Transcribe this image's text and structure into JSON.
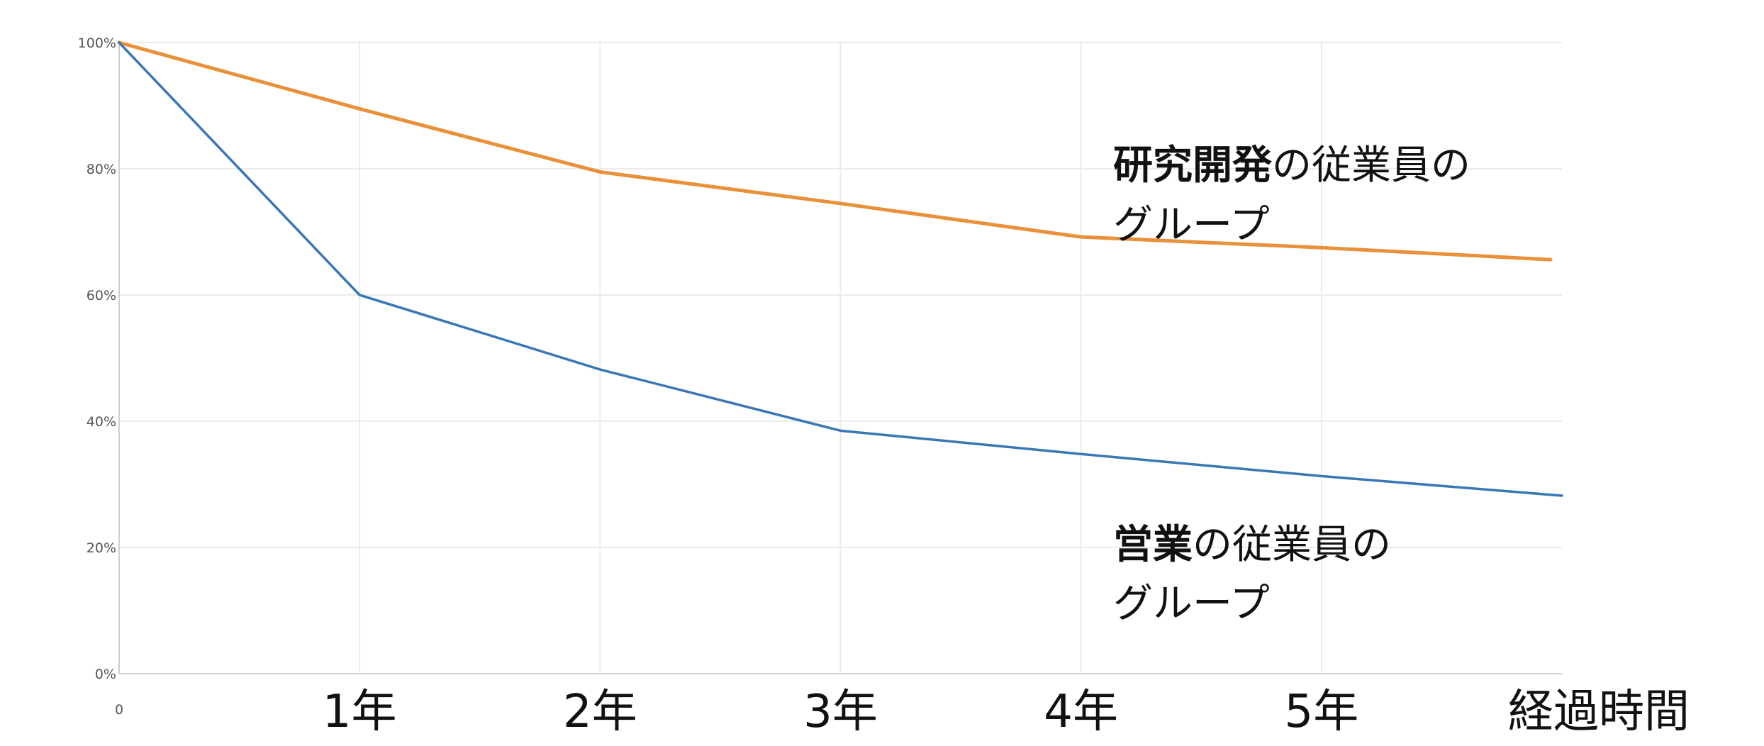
{
  "chart_data": {
    "type": "line",
    "x": [
      0,
      1,
      2,
      3,
      4,
      5,
      6
    ],
    "x_tick_labels": [
      "0",
      "1年",
      "2年",
      "3年",
      "4年",
      "5年",
      "経過時間"
    ],
    "y_tick_labels": [
      "0%",
      "20%",
      "40%",
      "60%",
      "80%",
      "100%"
    ],
    "y_ticks": [
      0,
      20,
      40,
      60,
      80,
      100
    ],
    "xlim": [
      0,
      6
    ],
    "ylim": [
      0,
      100
    ],
    "grid": true,
    "series": [
      {
        "key": "rnd",
        "label_bold": "研究開発",
        "label_rest_line1": "の従業員の",
        "label_line2": "グループ",
        "color": "#e8913a",
        "values": [
          100,
          89.5,
          79.5,
          74.5,
          69.2,
          67.5,
          65.6
        ]
      },
      {
        "key": "sales",
        "label_bold": "営業",
        "label_rest_line1": "の従業員の",
        "label_line2": "グループ",
        "color": "#3a77b5",
        "values": [
          100,
          60,
          48.2,
          38.5,
          34.8,
          31.3,
          28.2
        ]
      }
    ]
  }
}
